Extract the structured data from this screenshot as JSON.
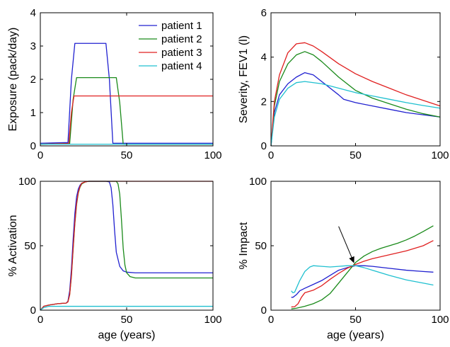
{
  "colors": {
    "patient1": "#2020d0",
    "patient2": "#1a8a1a",
    "patient3": "#e02020",
    "patient4": "#20c0d0"
  },
  "chart_data": [
    {
      "type": "line",
      "id": "exposure",
      "xlabel": "",
      "ylabel": "Exposure (pack/day)",
      "xlim": [
        0,
        100
      ],
      "ylim": [
        0,
        4
      ],
      "xticks": [
        "0",
        "50",
        "100"
      ],
      "yticks": [
        "0",
        "1",
        "2",
        "3",
        "4"
      ],
      "legend": {
        "placement": "top-right",
        "entries": [
          "patient 1",
          "patient 2",
          "patient 3",
          "patient 4"
        ]
      },
      "series": [
        {
          "name": "patient 1",
          "color_key": "patient1",
          "x": [
            0,
            16,
            18,
            20,
            38,
            40,
            42,
            100
          ],
          "y": [
            0.08,
            0.1,
            2.0,
            3.08,
            3.08,
            2.0,
            0.08,
            0.08
          ]
        },
        {
          "name": "patient 2",
          "color_key": "patient2",
          "x": [
            0,
            17,
            19,
            21,
            44,
            46,
            48,
            100
          ],
          "y": [
            0.05,
            0.07,
            1.4,
            2.05,
            2.05,
            1.3,
            0.05,
            0.05
          ]
        },
        {
          "name": "patient 3",
          "color_key": "patient3",
          "x": [
            0,
            16.5,
            18,
            19.5,
            100
          ],
          "y": [
            0.05,
            0.07,
            1.0,
            1.5,
            1.5
          ]
        },
        {
          "name": "patient 4",
          "color_key": "patient4",
          "x": [
            0,
            100
          ],
          "y": [
            0.05,
            0.05
          ]
        }
      ]
    },
    {
      "type": "line",
      "id": "severity",
      "xlabel": "",
      "ylabel": "Severity, FEV1 (l)",
      "xlim": [
        0,
        100
      ],
      "ylim": [
        0,
        6
      ],
      "xticks": [
        "0",
        "50",
        "100"
      ],
      "yticks": [
        "0",
        "2",
        "4",
        "6"
      ],
      "series": [
        {
          "name": "patient 1",
          "color_key": "patient1",
          "x": [
            0,
            2,
            5,
            10,
            15,
            20,
            25,
            30,
            35,
            40,
            43,
            50,
            60,
            70,
            80,
            90,
            100
          ],
          "y": [
            0,
            1.5,
            2.3,
            2.8,
            3.1,
            3.3,
            3.2,
            2.9,
            2.6,
            2.3,
            2.1,
            1.95,
            1.8,
            1.65,
            1.5,
            1.4,
            1.3
          ]
        },
        {
          "name": "patient 2",
          "color_key": "patient2",
          "x": [
            0,
            2,
            5,
            10,
            15,
            20,
            25,
            30,
            40,
            50,
            60,
            70,
            80,
            90,
            100
          ],
          "y": [
            0,
            1.8,
            2.9,
            3.7,
            4.1,
            4.25,
            4.1,
            3.8,
            3.1,
            2.5,
            2.15,
            1.9,
            1.65,
            1.45,
            1.3
          ]
        },
        {
          "name": "patient 3",
          "color_key": "patient3",
          "x": [
            0,
            2,
            5,
            10,
            15,
            20,
            25,
            30,
            40,
            50,
            60,
            70,
            80,
            90,
            100
          ],
          "y": [
            0,
            2.0,
            3.2,
            4.2,
            4.6,
            4.65,
            4.5,
            4.25,
            3.7,
            3.25,
            2.9,
            2.6,
            2.3,
            2.05,
            1.8
          ]
        },
        {
          "name": "patient 4",
          "color_key": "patient4",
          "x": [
            0,
            2,
            5,
            10,
            15,
            20,
            30,
            40,
            50,
            60,
            70,
            80,
            90,
            100
          ],
          "y": [
            0,
            1.3,
            2.1,
            2.6,
            2.85,
            2.9,
            2.8,
            2.6,
            2.4,
            2.25,
            2.1,
            1.95,
            1.82,
            1.7
          ]
        }
      ]
    },
    {
      "type": "line",
      "id": "activation",
      "xlabel": "age (years)",
      "ylabel": "% Activation",
      "xlim": [
        0,
        100
      ],
      "ylim": [
        0,
        100
      ],
      "xticks": [
        "0",
        "50",
        "100"
      ],
      "yticks": [
        "0",
        "50",
        "100"
      ],
      "series": [
        {
          "name": "patient 1",
          "color_key": "patient1",
          "x": [
            0,
            2,
            5,
            10,
            15,
            16,
            17,
            18,
            19,
            20,
            21,
            22,
            23,
            24,
            26,
            28,
            30,
            32,
            35,
            38,
            40,
            41,
            42,
            43,
            44,
            46,
            48,
            50,
            55,
            60,
            70,
            80,
            90,
            100
          ],
          "y": [
            0,
            3,
            4,
            5,
            5.5,
            7,
            15,
            32,
            55,
            75,
            88,
            94,
            97,
            98.5,
            99.5,
            100,
            100,
            100,
            100,
            100,
            99.5,
            95,
            82,
            62,
            45,
            34,
            30.5,
            29.5,
            29,
            29,
            29,
            29,
            29,
            29
          ]
        },
        {
          "name": "patient 2",
          "color_key": "patient2",
          "x": [
            0,
            2,
            5,
            10,
            15,
            16,
            17,
            18,
            19,
            20,
            21,
            22,
            23,
            24,
            26,
            28,
            30,
            40,
            44,
            45,
            46,
            47,
            48,
            49,
            50,
            52,
            55,
            60,
            70,
            80,
            90,
            100
          ],
          "y": [
            0,
            3,
            4,
            5,
            5.5,
            6.5,
            12,
            26,
            47,
            67,
            82,
            91,
            95.5,
            98,
            99.5,
            100,
            100,
            100,
            100,
            98,
            90,
            70,
            48,
            35,
            29,
            26,
            25,
            25,
            25,
            25,
            25,
            25
          ]
        },
        {
          "name": "patient 3",
          "color_key": "patient3",
          "x": [
            0,
            2,
            5,
            10,
            15,
            16,
            17,
            18,
            19,
            20,
            21,
            22,
            23,
            24,
            26,
            28,
            30,
            100
          ],
          "y": [
            0,
            3,
            4,
            5,
            5.5,
            6.5,
            12,
            27,
            48,
            68,
            83,
            91.5,
            96,
            98.5,
            99.5,
            100,
            100,
            100
          ]
        },
        {
          "name": "patient 4",
          "color_key": "patient4",
          "x": [
            0,
            2,
            5,
            100
          ],
          "y": [
            0,
            2,
            3,
            3
          ]
        }
      ]
    },
    {
      "type": "line",
      "id": "impact",
      "xlabel": "age (years)",
      "ylabel": "% Impact",
      "xlim": [
        0,
        100
      ],
      "ylim": [
        0,
        100
      ],
      "xticks": [
        "0",
        "50",
        "100"
      ],
      "yticks": [
        "0",
        "50",
        "100"
      ],
      "annotation": {
        "type": "arrow",
        "from": [
          40,
          65
        ],
        "to": [
          49,
          37
        ]
      },
      "series": [
        {
          "name": "patient 1",
          "color_key": "patient1",
          "x": [
            12,
            13,
            15,
            17,
            20,
            25,
            30,
            35,
            40,
            45,
            50,
            55,
            60,
            70,
            80,
            90,
            96
          ],
          "y": [
            10,
            10,
            12,
            15,
            17,
            20,
            23,
            27,
            31,
            33,
            34.5,
            34.5,
            34,
            32.5,
            31,
            30,
            29.5
          ]
        },
        {
          "name": "patient 2",
          "color_key": "patient2",
          "x": [
            12,
            15,
            20,
            25,
            30,
            35,
            40,
            45,
            50,
            55,
            60,
            65,
            70,
            75,
            80,
            85,
            90,
            96
          ],
          "y": [
            1,
            1.5,
            3,
            5,
            8,
            13,
            21,
            29,
            37,
            42,
            45.5,
            48,
            50,
            52,
            54.5,
            57.5,
            61,
            65.5
          ]
        },
        {
          "name": "patient 3",
          "color_key": "patient3",
          "x": [
            12,
            14,
            16,
            18,
            20,
            25,
            30,
            35,
            40,
            45,
            50,
            55,
            60,
            70,
            80,
            90,
            96
          ],
          "y": [
            2.5,
            2.7,
            5,
            10,
            13.5,
            15.5,
            19,
            24,
            28.5,
            32.5,
            35.5,
            38,
            40,
            43,
            46,
            50,
            54
          ]
        },
        {
          "name": "patient 4",
          "color_key": "patient4",
          "x": [
            12,
            13,
            14,
            15,
            17,
            20,
            23,
            25,
            30,
            35,
            40,
            45,
            50,
            55,
            60,
            70,
            80,
            90,
            96
          ],
          "y": [
            15,
            13.5,
            14,
            17,
            23,
            30,
            33.5,
            34.5,
            34,
            33.5,
            34,
            34.5,
            34.5,
            33,
            31,
            27,
            23.5,
            21,
            19.5
          ]
        }
      ]
    }
  ]
}
